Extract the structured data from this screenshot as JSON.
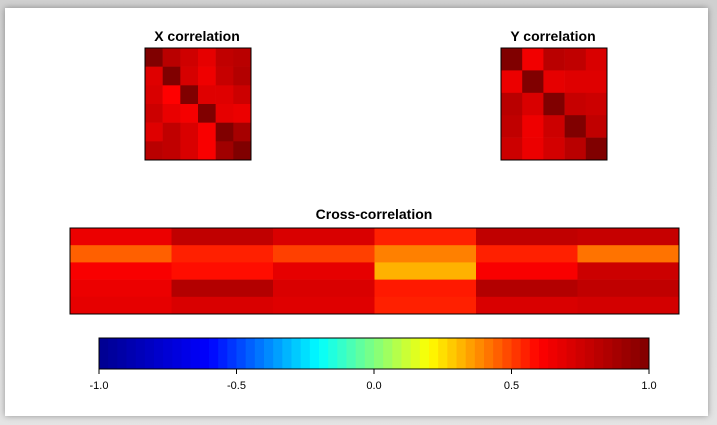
{
  "chart_data": [
    {
      "type": "heatmap",
      "title": "X correlation",
      "rows": 6,
      "cols": 6,
      "values": [
        [
          1.0,
          0.82,
          0.75,
          0.68,
          0.8,
          0.82
        ],
        [
          0.7,
          1.0,
          0.73,
          0.65,
          0.78,
          0.84
        ],
        [
          0.72,
          0.6,
          1.0,
          0.7,
          0.7,
          0.76
        ],
        [
          0.76,
          0.67,
          0.63,
          1.0,
          0.68,
          0.66
        ],
        [
          0.7,
          0.8,
          0.72,
          0.62,
          1.0,
          0.88
        ],
        [
          0.82,
          0.8,
          0.72,
          0.62,
          0.9,
          1.0
        ]
      ]
    },
    {
      "type": "heatmap",
      "title": "Y correlation",
      "rows": 5,
      "cols": 5,
      "values": [
        [
          1.0,
          0.64,
          0.82,
          0.8,
          0.72
        ],
        [
          0.66,
          1.0,
          0.68,
          0.7,
          0.7
        ],
        [
          0.82,
          0.72,
          1.0,
          0.78,
          0.76
        ],
        [
          0.8,
          0.65,
          0.76,
          1.0,
          0.8
        ],
        [
          0.76,
          0.66,
          0.74,
          0.82,
          1.0
        ]
      ]
    },
    {
      "type": "heatmap",
      "title": "Cross-correlation",
      "rows": 5,
      "cols": 6,
      "values": [
        [
          0.66,
          0.8,
          0.72,
          0.55,
          0.8,
          0.78
        ],
        [
          0.45,
          0.55,
          0.5,
          0.4,
          0.55,
          0.42
        ],
        [
          0.62,
          0.58,
          0.68,
          0.32,
          0.62,
          0.76
        ],
        [
          0.66,
          0.84,
          0.72,
          0.56,
          0.84,
          0.8
        ],
        [
          0.68,
          0.72,
          0.7,
          0.55,
          0.72,
          0.74
        ]
      ]
    },
    {
      "type": "colorbar",
      "range": [
        -1.0,
        1.0
      ],
      "ticks": [
        -1.0,
        -0.5,
        0.0,
        0.5,
        1.0
      ],
      "tick_labels": [
        "-1.0",
        "-0.5",
        "0.0",
        "0.5",
        "1.0"
      ],
      "colormap": [
        "#00008f",
        "#0000ff",
        "#00ffff",
        "#ffff00",
        "#ff0000",
        "#800000"
      ]
    }
  ]
}
